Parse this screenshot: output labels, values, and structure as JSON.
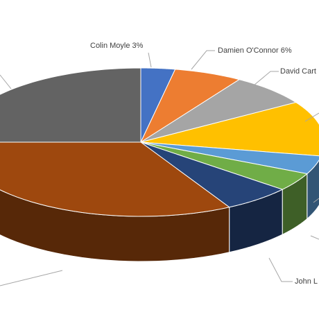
{
  "chart_data": {
    "type": "pie3d",
    "categories": [
      "Colin Moyle",
      "Damien O'Connor",
      "David Cart",
      null,
      null,
      null,
      "John L",
      null,
      null
    ],
    "values": [
      3,
      6,
      7,
      12,
      4,
      4,
      6,
      33,
      25
    ],
    "value_labels": [
      "3%",
      "6%",
      null,
      null,
      null,
      null,
      null,
      null,
      null
    ],
    "colors": [
      "#4472c4",
      "#ed7d31",
      "#a5a5a5",
      "#ffc000",
      "#5b9bd5",
      "#70ad47",
      "#264478",
      "#9e480e",
      "#636363"
    ]
  }
}
